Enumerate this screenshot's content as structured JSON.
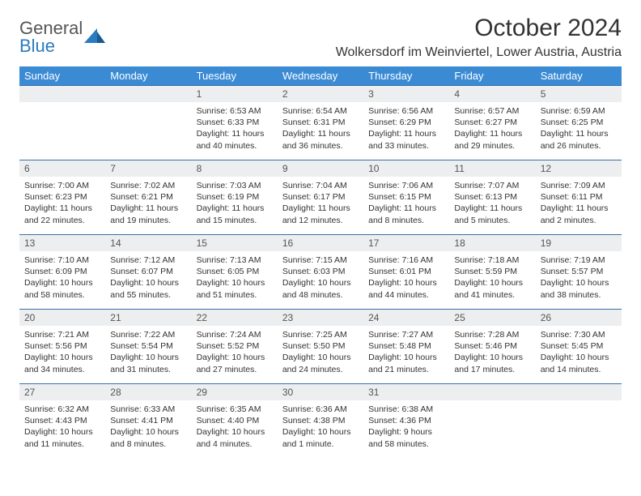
{
  "brand": {
    "part1": "General",
    "part2": "Blue"
  },
  "title": "October 2024",
  "location": "Wolkersdorf im Weinviertel, Lower Austria, Austria",
  "colors": {
    "header_bg": "#3b8bd4",
    "row_border": "#3b6fa8",
    "daynum_bg": "#eceeef",
    "logo_blue": "#2b7bbf",
    "text": "#333333"
  },
  "weekdays": [
    "Sunday",
    "Monday",
    "Tuesday",
    "Wednesday",
    "Thursday",
    "Friday",
    "Saturday"
  ],
  "cells": [
    {
      "n": "",
      "lines": []
    },
    {
      "n": "",
      "lines": []
    },
    {
      "n": "1",
      "lines": [
        "Sunrise: 6:53 AM",
        "Sunset: 6:33 PM",
        "Daylight: 11 hours and 40 minutes."
      ]
    },
    {
      "n": "2",
      "lines": [
        "Sunrise: 6:54 AM",
        "Sunset: 6:31 PM",
        "Daylight: 11 hours and 36 minutes."
      ]
    },
    {
      "n": "3",
      "lines": [
        "Sunrise: 6:56 AM",
        "Sunset: 6:29 PM",
        "Daylight: 11 hours and 33 minutes."
      ]
    },
    {
      "n": "4",
      "lines": [
        "Sunrise: 6:57 AM",
        "Sunset: 6:27 PM",
        "Daylight: 11 hours and 29 minutes."
      ]
    },
    {
      "n": "5",
      "lines": [
        "Sunrise: 6:59 AM",
        "Sunset: 6:25 PM",
        "Daylight: 11 hours and 26 minutes."
      ]
    },
    {
      "n": "6",
      "lines": [
        "Sunrise: 7:00 AM",
        "Sunset: 6:23 PM",
        "Daylight: 11 hours and 22 minutes."
      ]
    },
    {
      "n": "7",
      "lines": [
        "Sunrise: 7:02 AM",
        "Sunset: 6:21 PM",
        "Daylight: 11 hours and 19 minutes."
      ]
    },
    {
      "n": "8",
      "lines": [
        "Sunrise: 7:03 AM",
        "Sunset: 6:19 PM",
        "Daylight: 11 hours and 15 minutes."
      ]
    },
    {
      "n": "9",
      "lines": [
        "Sunrise: 7:04 AM",
        "Sunset: 6:17 PM",
        "Daylight: 11 hours and 12 minutes."
      ]
    },
    {
      "n": "10",
      "lines": [
        "Sunrise: 7:06 AM",
        "Sunset: 6:15 PM",
        "Daylight: 11 hours and 8 minutes."
      ]
    },
    {
      "n": "11",
      "lines": [
        "Sunrise: 7:07 AM",
        "Sunset: 6:13 PM",
        "Daylight: 11 hours and 5 minutes."
      ]
    },
    {
      "n": "12",
      "lines": [
        "Sunrise: 7:09 AM",
        "Sunset: 6:11 PM",
        "Daylight: 11 hours and 2 minutes."
      ]
    },
    {
      "n": "13",
      "lines": [
        "Sunrise: 7:10 AM",
        "Sunset: 6:09 PM",
        "Daylight: 10 hours and 58 minutes."
      ]
    },
    {
      "n": "14",
      "lines": [
        "Sunrise: 7:12 AM",
        "Sunset: 6:07 PM",
        "Daylight: 10 hours and 55 minutes."
      ]
    },
    {
      "n": "15",
      "lines": [
        "Sunrise: 7:13 AM",
        "Sunset: 6:05 PM",
        "Daylight: 10 hours and 51 minutes."
      ]
    },
    {
      "n": "16",
      "lines": [
        "Sunrise: 7:15 AM",
        "Sunset: 6:03 PM",
        "Daylight: 10 hours and 48 minutes."
      ]
    },
    {
      "n": "17",
      "lines": [
        "Sunrise: 7:16 AM",
        "Sunset: 6:01 PM",
        "Daylight: 10 hours and 44 minutes."
      ]
    },
    {
      "n": "18",
      "lines": [
        "Sunrise: 7:18 AM",
        "Sunset: 5:59 PM",
        "Daylight: 10 hours and 41 minutes."
      ]
    },
    {
      "n": "19",
      "lines": [
        "Sunrise: 7:19 AM",
        "Sunset: 5:57 PM",
        "Daylight: 10 hours and 38 minutes."
      ]
    },
    {
      "n": "20",
      "lines": [
        "Sunrise: 7:21 AM",
        "Sunset: 5:56 PM",
        "Daylight: 10 hours and 34 minutes."
      ]
    },
    {
      "n": "21",
      "lines": [
        "Sunrise: 7:22 AM",
        "Sunset: 5:54 PM",
        "Daylight: 10 hours and 31 minutes."
      ]
    },
    {
      "n": "22",
      "lines": [
        "Sunrise: 7:24 AM",
        "Sunset: 5:52 PM",
        "Daylight: 10 hours and 27 minutes."
      ]
    },
    {
      "n": "23",
      "lines": [
        "Sunrise: 7:25 AM",
        "Sunset: 5:50 PM",
        "Daylight: 10 hours and 24 minutes."
      ]
    },
    {
      "n": "24",
      "lines": [
        "Sunrise: 7:27 AM",
        "Sunset: 5:48 PM",
        "Daylight: 10 hours and 21 minutes."
      ]
    },
    {
      "n": "25",
      "lines": [
        "Sunrise: 7:28 AM",
        "Sunset: 5:46 PM",
        "Daylight: 10 hours and 17 minutes."
      ]
    },
    {
      "n": "26",
      "lines": [
        "Sunrise: 7:30 AM",
        "Sunset: 5:45 PM",
        "Daylight: 10 hours and 14 minutes."
      ]
    },
    {
      "n": "27",
      "lines": [
        "Sunrise: 6:32 AM",
        "Sunset: 4:43 PM",
        "Daylight: 10 hours and 11 minutes."
      ]
    },
    {
      "n": "28",
      "lines": [
        "Sunrise: 6:33 AM",
        "Sunset: 4:41 PM",
        "Daylight: 10 hours and 8 minutes."
      ]
    },
    {
      "n": "29",
      "lines": [
        "Sunrise: 6:35 AM",
        "Sunset: 4:40 PM",
        "Daylight: 10 hours and 4 minutes."
      ]
    },
    {
      "n": "30",
      "lines": [
        "Sunrise: 6:36 AM",
        "Sunset: 4:38 PM",
        "Daylight: 10 hours and 1 minute."
      ]
    },
    {
      "n": "31",
      "lines": [
        "Sunrise: 6:38 AM",
        "Sunset: 4:36 PM",
        "Daylight: 9 hours and 58 minutes."
      ]
    },
    {
      "n": "",
      "lines": []
    },
    {
      "n": "",
      "lines": []
    }
  ]
}
